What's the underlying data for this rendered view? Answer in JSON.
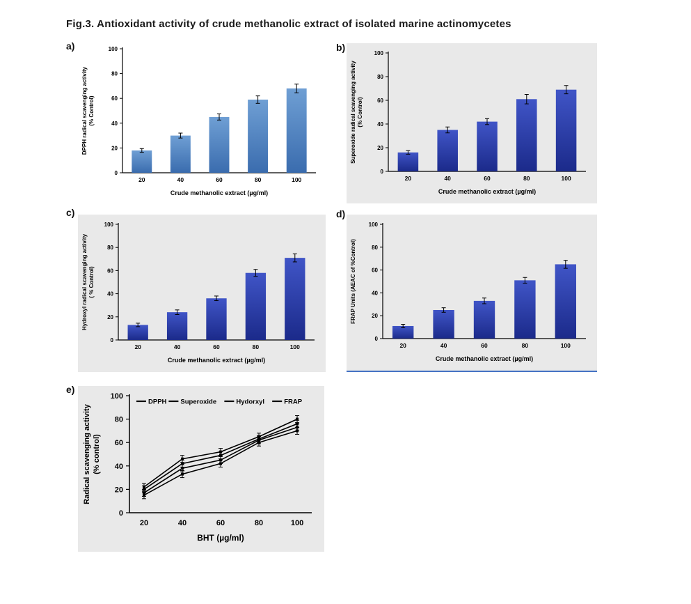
{
  "figure_title": "Fig.3. Antioxidant activity of crude methanolic extract of  isolated marine actinomycetes",
  "panels": [
    {
      "label": "a)"
    },
    {
      "label": "b)"
    },
    {
      "label": "c)"
    },
    {
      "label": "d)"
    },
    {
      "label": "e)"
    }
  ],
  "colors": {
    "axis": "#000000",
    "text": "#000000",
    "panel_background_gray": "#e9e9e9",
    "panel_background_white": "#ffffff",
    "panel_d_border": "#4472c4"
  },
  "chart_data": [
    {
      "type": "bar",
      "panel": "a",
      "categories": [
        "20",
        "40",
        "60",
        "80",
        "100"
      ],
      "values": [
        18,
        30,
        45,
        59,
        68
      ],
      "errors": [
        1.5,
        2,
        2.5,
        3,
        3.5
      ],
      "ylabel": "DPPH radical scavenging activity\n(% Control)",
      "xlabel": "Crude methanolic extract (µg/ml)",
      "ylim": [
        0,
        100
      ],
      "yticks": [
        0,
        20,
        40,
        60,
        80,
        100
      ],
      "bar_color_top": "#6f9fd4",
      "bar_color_bottom": "#3a6cae",
      "error_color": "#000000",
      "plot_bg": "#ffffff",
      "grid": false,
      "legend": "none"
    },
    {
      "type": "bar",
      "panel": "b",
      "categories": [
        "20",
        "40",
        "60",
        "80",
        "100"
      ],
      "values": [
        16,
        35,
        42,
        61,
        69
      ],
      "errors": [
        1.5,
        2.5,
        2.5,
        4,
        3.5
      ],
      "ylabel": "Superoxide radical scavenging activity\n(% Control)",
      "xlabel": "Crude methanolic extract (µg/ml)",
      "ylim": [
        0,
        100
      ],
      "yticks": [
        0,
        20,
        40,
        60,
        80,
        100
      ],
      "bar_color_top": "#4055c7",
      "bar_color_bottom": "#1b2a8a",
      "error_color": "#000000",
      "plot_bg": "#e9e9e9",
      "grid": false,
      "legend": "none"
    },
    {
      "type": "bar",
      "panel": "c",
      "categories": [
        "20",
        "40",
        "60",
        "80",
        "100"
      ],
      "values": [
        13,
        24,
        36,
        58,
        71
      ],
      "errors": [
        1.5,
        2,
        2,
        3,
        3.5
      ],
      "ylabel": "Hydroxyl  radical scavenging activity\n( % Control)",
      "xlabel": "Crude methanolic extract (µg/ml)",
      "ylim": [
        0,
        100
      ],
      "yticks": [
        0,
        20,
        40,
        60,
        80,
        100
      ],
      "bar_color_top": "#4055c7",
      "bar_color_bottom": "#1b2a8a",
      "error_color": "#000000",
      "plot_bg": "#e9e9e9",
      "grid": false,
      "legend": "none"
    },
    {
      "type": "bar",
      "panel": "d",
      "categories": [
        "20",
        "40",
        "60",
        "80",
        "100"
      ],
      "values": [
        11,
        25,
        33,
        51,
        65
      ],
      "errors": [
        1.5,
        2,
        2.5,
        2.5,
        3.5
      ],
      "ylabel": "FRAP Units (AEAC of %Control)",
      "xlabel": "Crude methanolic extract (µg/ml)",
      "ylim": [
        0,
        100
      ],
      "yticks": [
        0,
        20,
        40,
        60,
        80,
        100
      ],
      "bar_color_top": "#4055c7",
      "bar_color_bottom": "#1b2a8a",
      "error_color": "#000000",
      "plot_bg": "#e9e9e9",
      "grid": false,
      "legend": "none"
    },
    {
      "type": "line",
      "panel": "e",
      "x": [
        "20",
        "40",
        "60",
        "80",
        "100"
      ],
      "series": [
        {
          "name": "DPPH",
          "values": [
            22,
            46,
            52,
            65,
            80
          ]
        },
        {
          "name": "Superoxide",
          "values": [
            20,
            42,
            49,
            63,
            76
          ]
        },
        {
          "name": "Hydorxyl",
          "values": [
            17,
            38,
            45,
            62,
            73
          ]
        },
        {
          "name": "FRAP",
          "values": [
            15,
            33,
            42,
            60,
            70
          ]
        }
      ],
      "error": 3,
      "ylabel": "Radical scavenging activity\n(% control)",
      "xlabel": "BHT (µg/ml)",
      "ylim": [
        0,
        100
      ],
      "yticks": [
        0,
        20,
        40,
        60,
        80,
        100
      ],
      "line_color": "#000000",
      "plot_bg": "#e9e9e9",
      "grid": false,
      "legend_position": "top-inside"
    }
  ]
}
